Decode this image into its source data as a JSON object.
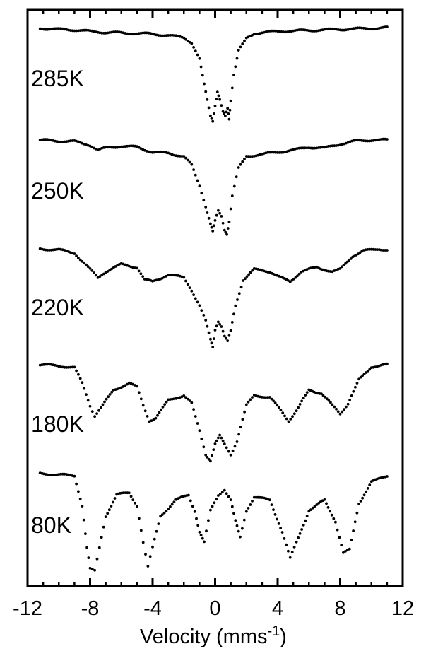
{
  "chart_data": {
    "type": "scatter",
    "title": "",
    "xlabel": "Velocity  (mms",
    "xlabel_sup": "-1",
    "xlabel_close": ")",
    "ylabel": "",
    "xlim": [
      -12,
      12
    ],
    "x_ticks": [
      -12,
      -8,
      -4,
      0,
      4,
      8,
      12
    ],
    "x_tick_labels": [
      "-12",
      "-8",
      "-4",
      "0",
      "4",
      "8",
      "12"
    ],
    "grid": false,
    "marker_color": "#000000",
    "note": "",
    "series": [
      {
        "name": "285K",
        "points": [
          [
            -11.2,
            1.0
          ],
          [
            -10.0,
            0.99
          ],
          [
            -9.0,
            0.985
          ],
          [
            -8.0,
            0.97
          ],
          [
            -7.0,
            0.96
          ],
          [
            -6.0,
            0.955
          ],
          [
            -5.0,
            0.95
          ],
          [
            -4.0,
            0.945
          ],
          [
            -3.0,
            0.93
          ],
          [
            -2.0,
            0.91
          ],
          [
            -1.5,
            0.86
          ],
          [
            -1.0,
            0.7
          ],
          [
            -0.7,
            0.45
          ],
          [
            -0.5,
            0.3
          ],
          [
            -0.3,
            0.15
          ],
          [
            -0.15,
            0.1
          ],
          [
            0.0,
            0.25
          ],
          [
            0.15,
            0.38
          ],
          [
            0.3,
            0.3
          ],
          [
            0.5,
            0.18
          ],
          [
            0.65,
            0.14
          ],
          [
            0.8,
            0.22
          ],
          [
            0.9,
            0.12
          ],
          [
            1.0,
            0.3
          ],
          [
            1.2,
            0.55
          ],
          [
            1.5,
            0.78
          ],
          [
            2.0,
            0.9
          ],
          [
            2.5,
            0.95
          ],
          [
            3.0,
            0.96
          ],
          [
            4.0,
            0.97
          ],
          [
            5.0,
            0.975
          ],
          [
            6.0,
            0.98
          ],
          [
            7.0,
            0.985
          ],
          [
            8.0,
            0.99
          ],
          [
            9.0,
            0.995
          ],
          [
            10.0,
            1.0
          ],
          [
            11.0,
            1.005
          ]
        ]
      },
      {
        "name": "250K",
        "points": [
          [
            -11.2,
            1.0
          ],
          [
            -10.0,
            0.99
          ],
          [
            -9.0,
            0.985
          ],
          [
            -8.0,
            0.95
          ],
          [
            -7.5,
            0.9
          ],
          [
            -7.0,
            0.92
          ],
          [
            -6.0,
            0.94
          ],
          [
            -5.0,
            0.93
          ],
          [
            -4.0,
            0.88
          ],
          [
            -3.0,
            0.87
          ],
          [
            -2.0,
            0.84
          ],
          [
            -1.5,
            0.75
          ],
          [
            -1.0,
            0.55
          ],
          [
            -0.6,
            0.35
          ],
          [
            -0.3,
            0.18
          ],
          [
            -0.15,
            0.1
          ],
          [
            0.0,
            0.2
          ],
          [
            0.2,
            0.3
          ],
          [
            0.4,
            0.25
          ],
          [
            0.6,
            0.12
          ],
          [
            0.75,
            0.08
          ],
          [
            0.9,
            0.2
          ],
          [
            1.1,
            0.45
          ],
          [
            1.5,
            0.72
          ],
          [
            2.0,
            0.84
          ],
          [
            3.0,
            0.86
          ],
          [
            4.0,
            0.88
          ],
          [
            5.0,
            0.9
          ],
          [
            6.0,
            0.93
          ],
          [
            7.0,
            0.92
          ],
          [
            8.0,
            0.96
          ],
          [
            9.0,
            0.99
          ],
          [
            10.0,
            1.0
          ],
          [
            11.0,
            1.0
          ]
        ]
      },
      {
        "name": "220K",
        "points": [
          [
            -11.2,
            1.0
          ],
          [
            -10.0,
            0.99
          ],
          [
            -9.0,
            0.96
          ],
          [
            -8.0,
            0.8
          ],
          [
            -7.5,
            0.72
          ],
          [
            -7.0,
            0.78
          ],
          [
            -6.0,
            0.85
          ],
          [
            -5.0,
            0.82
          ],
          [
            -4.5,
            0.7
          ],
          [
            -4.0,
            0.68
          ],
          [
            -3.0,
            0.75
          ],
          [
            -2.0,
            0.72
          ],
          [
            -1.5,
            0.6
          ],
          [
            -1.0,
            0.45
          ],
          [
            -0.6,
            0.3
          ],
          [
            -0.3,
            0.12
          ],
          [
            -0.15,
            0.05
          ],
          [
            0.0,
            0.22
          ],
          [
            0.2,
            0.3
          ],
          [
            0.4,
            0.25
          ],
          [
            0.6,
            0.15
          ],
          [
            0.8,
            0.1
          ],
          [
            1.0,
            0.2
          ],
          [
            1.3,
            0.45
          ],
          [
            1.8,
            0.7
          ],
          [
            2.5,
            0.8
          ],
          [
            3.5,
            0.78
          ],
          [
            4.2,
            0.72
          ],
          [
            4.8,
            0.68
          ],
          [
            5.5,
            0.78
          ],
          [
            6.5,
            0.82
          ],
          [
            7.5,
            0.78
          ],
          [
            8.0,
            0.8
          ],
          [
            8.8,
            0.93
          ],
          [
            9.5,
            0.98
          ],
          [
            10.5,
            1.0
          ],
          [
            11.0,
            0.99
          ]
        ]
      },
      {
        "name": "180K",
        "points": [
          [
            -11.2,
            1.0
          ],
          [
            -10.0,
            0.99
          ],
          [
            -9.0,
            0.97
          ],
          [
            -8.5,
            0.82
          ],
          [
            -8.0,
            0.6
          ],
          [
            -7.7,
            0.5
          ],
          [
            -7.3,
            0.58
          ],
          [
            -6.5,
            0.75
          ],
          [
            -5.5,
            0.82
          ],
          [
            -5.0,
            0.78
          ],
          [
            -4.6,
            0.6
          ],
          [
            -4.2,
            0.45
          ],
          [
            -3.8,
            0.48
          ],
          [
            -3.0,
            0.65
          ],
          [
            -2.0,
            0.7
          ],
          [
            -1.5,
            0.62
          ],
          [
            -1.0,
            0.35
          ],
          [
            -0.6,
            0.12
          ],
          [
            -0.3,
            0.06
          ],
          [
            0.0,
            0.22
          ],
          [
            0.3,
            0.3
          ],
          [
            0.6,
            0.22
          ],
          [
            1.0,
            0.12
          ],
          [
            1.4,
            0.25
          ],
          [
            2.0,
            0.6
          ],
          [
            2.5,
            0.7
          ],
          [
            3.5,
            0.68
          ],
          [
            4.2,
            0.55
          ],
          [
            4.7,
            0.45
          ],
          [
            5.2,
            0.55
          ],
          [
            6.0,
            0.75
          ],
          [
            6.8,
            0.72
          ],
          [
            7.5,
            0.6
          ],
          [
            8.0,
            0.52
          ],
          [
            8.5,
            0.62
          ],
          [
            9.2,
            0.85
          ],
          [
            10.0,
            0.98
          ],
          [
            11.0,
            1.0
          ]
        ]
      },
      {
        "name": "80K",
        "points": [
          [
            -11.2,
            1.0
          ],
          [
            -10.0,
            0.99
          ],
          [
            -9.0,
            0.98
          ],
          [
            -8.5,
            0.7
          ],
          [
            -8.2,
            0.3
          ],
          [
            -8.0,
            0.1
          ],
          [
            -7.7,
            0.08
          ],
          [
            -7.4,
            0.3
          ],
          [
            -7.0,
            0.6
          ],
          [
            -6.3,
            0.8
          ],
          [
            -5.5,
            0.82
          ],
          [
            -5.0,
            0.7
          ],
          [
            -4.6,
            0.35
          ],
          [
            -4.3,
            0.12
          ],
          [
            -4.0,
            0.3
          ],
          [
            -3.5,
            0.6
          ],
          [
            -2.5,
            0.75
          ],
          [
            -1.7,
            0.8
          ],
          [
            -1.3,
            0.65
          ],
          [
            -1.0,
            0.45
          ],
          [
            -0.7,
            0.35
          ],
          [
            -0.3,
            0.65
          ],
          [
            0.2,
            0.8
          ],
          [
            0.6,
            0.85
          ],
          [
            1.0,
            0.75
          ],
          [
            1.3,
            0.55
          ],
          [
            1.6,
            0.4
          ],
          [
            2.0,
            0.65
          ],
          [
            2.5,
            0.78
          ],
          [
            3.5,
            0.75
          ],
          [
            4.3,
            0.45
          ],
          [
            4.8,
            0.2
          ],
          [
            5.2,
            0.35
          ],
          [
            6.0,
            0.65
          ],
          [
            7.0,
            0.75
          ],
          [
            7.7,
            0.55
          ],
          [
            8.2,
            0.25
          ],
          [
            8.6,
            0.28
          ],
          [
            9.2,
            0.72
          ],
          [
            10.0,
            0.92
          ],
          [
            11.0,
            0.98
          ]
        ]
      }
    ]
  }
}
